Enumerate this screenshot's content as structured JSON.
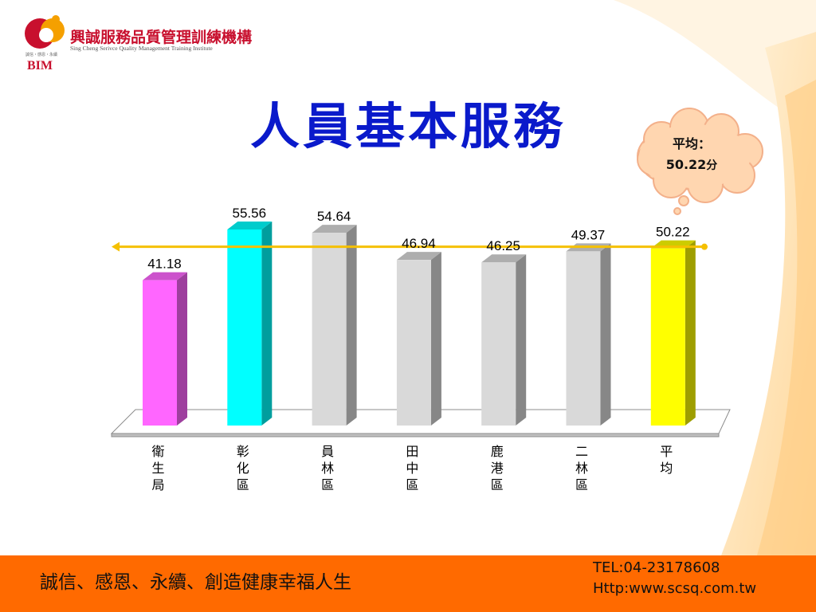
{
  "header": {
    "org_name_cn": "興誠服務品質管理訓練機構",
    "org_name_en": "Sing Cheng Serivce Quality Management Training Institute",
    "logo_text": "BIM",
    "logo_subtext": "誠信・感恩・永續"
  },
  "title": "人員基本服務",
  "callout": {
    "line1": "平均：",
    "value": "50.22",
    "unit": "分"
  },
  "footer": {
    "slogan": "誠信、感恩、永續、創造健康幸福人生",
    "tel": "TEL:04-23178608",
    "url": "Http:www.scsq.com.tw",
    "color": "#ff6a00"
  },
  "chart_data": {
    "type": "bar",
    "categories": [
      "衛生局",
      "彰化區",
      "員林區",
      "田中區",
      "鹿港區",
      "二林區",
      "平均"
    ],
    "values": [
      41.18,
      55.56,
      54.64,
      46.94,
      46.25,
      49.37,
      50.22
    ],
    "value_labels": [
      "41.18",
      "55.56",
      "54.64",
      "46.94",
      "46.25",
      "49.37",
      "50.22"
    ],
    "colors": [
      "#ff66ff",
      "#00ffff",
      "#d9d9d9",
      "#d9d9d9",
      "#d9d9d9",
      "#d9d9d9",
      "#ffff00"
    ],
    "average_line": 50.22,
    "average_line_color": "#f5c000",
    "title": "",
    "xlabel": "",
    "ylabel": "",
    "ylim": [
      0,
      60
    ],
    "grid": false,
    "legend": "none"
  }
}
